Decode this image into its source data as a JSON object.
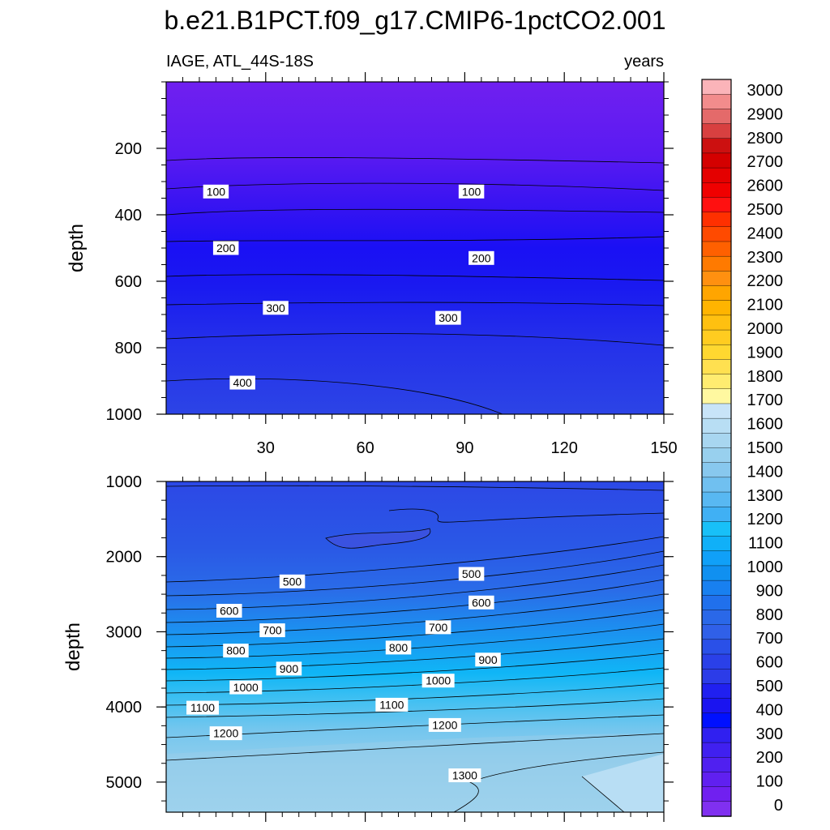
{
  "title": "b.e21.B1PCT.f09_g17.CMIP6-1pctCO2.001",
  "subtitle_left": "IAGE, ATL_44S-18S",
  "subtitle_right": "years",
  "colors": {
    "top_band": "#7020F0",
    "mid_band": "#1A14F0",
    "lower_band": "#2C3CE8",
    "deep_band": "#2A68E8",
    "bottom_band": "#9BD2EE"
  },
  "chart_data": [
    {
      "type": "contour",
      "panel": "upper",
      "xlabel": "",
      "ylabel": "depth",
      "xlim": [
        0,
        150
      ],
      "ylim": [
        1000,
        0
      ],
      "x_ticks": [
        30,
        60,
        90,
        120,
        150
      ],
      "y_ticks": [
        200,
        400,
        600,
        800,
        1000
      ],
      "contour_labels": [
        {
          "text": "100",
          "x": 15,
          "depth": 330
        },
        {
          "text": "100",
          "x": 92,
          "depth": 330
        },
        {
          "text": "200",
          "x": 18,
          "depth": 500
        },
        {
          "text": "200",
          "x": 95,
          "depth": 530
        },
        {
          "text": "300",
          "x": 33,
          "depth": 680
        },
        {
          "text": "300",
          "x": 85,
          "depth": 710
        },
        {
          "text": "400",
          "x": 23,
          "depth": 905
        }
      ]
    },
    {
      "type": "contour",
      "panel": "lower",
      "xlabel": "",
      "ylabel": "depth",
      "xlim": [
        0,
        150
      ],
      "ylim": [
        5400,
        1000
      ],
      "x_ticks": [
        30,
        60,
        90,
        120,
        150
      ],
      "y_ticks": [
        1000,
        2000,
        3000,
        4000,
        5000
      ],
      "contour_labels": [
        {
          "text": "500",
          "x": 38,
          "depth": 2330
        },
        {
          "text": "500",
          "x": 92,
          "depth": 2230
        },
        {
          "text": "600",
          "x": 19,
          "depth": 2720
        },
        {
          "text": "600",
          "x": 95,
          "depth": 2610
        },
        {
          "text": "700",
          "x": 32,
          "depth": 2980
        },
        {
          "text": "700",
          "x": 82,
          "depth": 2940
        },
        {
          "text": "800",
          "x": 21,
          "depth": 3250
        },
        {
          "text": "800",
          "x": 70,
          "depth": 3210
        },
        {
          "text": "900",
          "x": 37,
          "depth": 3490
        },
        {
          "text": "900",
          "x": 97,
          "depth": 3370
        },
        {
          "text": "1000",
          "x": 24,
          "depth": 3740
        },
        {
          "text": "1000",
          "x": 82,
          "depth": 3650
        },
        {
          "text": "1100",
          "x": 11,
          "depth": 4010
        },
        {
          "text": "1100",
          "x": 68,
          "depth": 3970
        },
        {
          "text": "1200",
          "x": 18,
          "depth": 4350
        },
        {
          "text": "1200",
          "x": 84,
          "depth": 4240
        },
        {
          "text": "1300",
          "x": 90,
          "depth": 4910
        }
      ]
    }
  ],
  "colorbar": {
    "labels": [
      "3000",
      "2900",
      "2800",
      "2700",
      "2600",
      "2500",
      "2400",
      "2300",
      "2200",
      "2100",
      "2000",
      "1900",
      "1800",
      "1700",
      "1600",
      "1500",
      "1400",
      "1300",
      "1200",
      "1100",
      "1000",
      "900",
      "800",
      "700",
      "600",
      "500",
      "400",
      "300",
      "200",
      "100",
      "0"
    ],
    "colors": [
      "#FBB4B9",
      "#F28C8C",
      "#E46A6A",
      "#D84040",
      "#CC1010",
      "#D40000",
      "#E40000",
      "#F00000",
      "#FF1010",
      "#FF3000",
      "#FF4A00",
      "#FF6000",
      "#FF7A00",
      "#FF9010",
      "#FFA500",
      "#FFB400",
      "#FFC010",
      "#FFCC20",
      "#FFD830",
      "#FFE050",
      "#FFEC70",
      "#FFF8A0",
      "#C8E4F8",
      "#B8DEF4",
      "#A8D6F0",
      "#98D0EE",
      "#88C8EE",
      "#70C0F0",
      "#58B8F2",
      "#40B0F4",
      "#18C0F8",
      "#10B0F8",
      "#10A0F8",
      "#1090F0",
      "#1880F0",
      "#2070EC",
      "#2A68E8",
      "#3060E8",
      "#2A50E8",
      "#2A40E8",
      "#2C3CE8",
      "#2020F0",
      "#1A14F0",
      "#0010FF",
      "#3020F0",
      "#4020F0",
      "#5020F0",
      "#6020F0",
      "#7020F0",
      "#8030F0"
    ]
  }
}
